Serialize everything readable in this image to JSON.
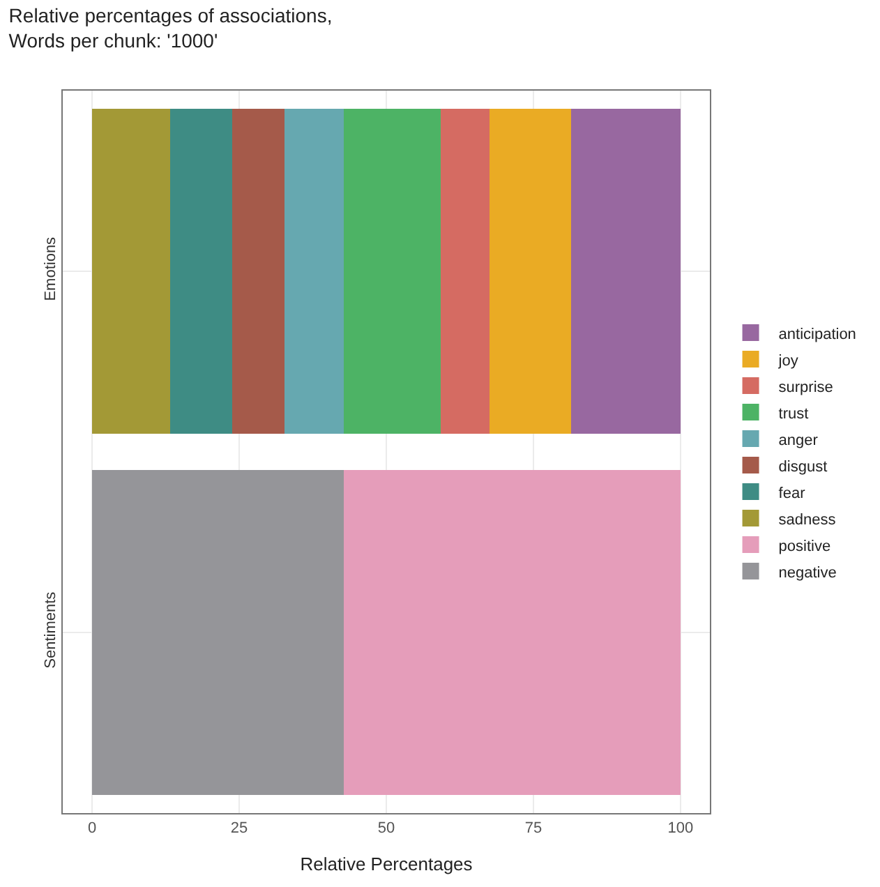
{
  "chart_data": {
    "type": "bar",
    "orientation": "horizontal",
    "stacked": true,
    "title": "Relative percentages of associations,\nWords per chunk: '1000'",
    "xlabel": "Relative Percentages",
    "categories": [
      "Emotions",
      "Sentiments"
    ],
    "series": [
      {
        "name": "negative",
        "color": "#959599",
        "values": [
          null,
          42.8
        ]
      },
      {
        "name": "positive",
        "color": "#e59dba",
        "values": [
          null,
          57.2
        ]
      },
      {
        "name": "sadness",
        "color": "#a39936",
        "values": [
          13.2,
          null
        ]
      },
      {
        "name": "fear",
        "color": "#3e8c84",
        "values": [
          10.6,
          null
        ]
      },
      {
        "name": "disgust",
        "color": "#a55a4a",
        "values": [
          8.9,
          null
        ]
      },
      {
        "name": "anger",
        "color": "#66a8b0",
        "values": [
          10.1,
          null
        ]
      },
      {
        "name": "trust",
        "color": "#4db365",
        "values": [
          16.4,
          null
        ]
      },
      {
        "name": "surprise",
        "color": "#d56b62",
        "values": [
          8.4,
          null
        ]
      },
      {
        "name": "joy",
        "color": "#eaab24",
        "values": [
          13.8,
          null
        ]
      },
      {
        "name": "anticipation",
        "color": "#9868a0",
        "values": [
          18.6,
          null
        ]
      }
    ],
    "xlim": [
      -5,
      105
    ],
    "xticks": [
      0,
      25,
      50,
      75,
      100
    ],
    "grid": true,
    "legend": "right"
  }
}
